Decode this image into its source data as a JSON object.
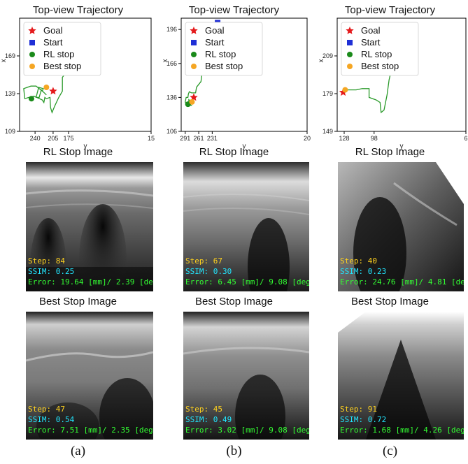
{
  "colors": {
    "goal": "#e41a1c",
    "start": "#1f2fd6",
    "rl_stop": "#1a8a1a",
    "best_stop": "#f5a623",
    "trajectory": "#2a9a2a",
    "overlay_step": "#ffd21f",
    "overlay_ssim": "#22e6ff",
    "overlay_error": "#33ff33"
  },
  "legend": {
    "goal": "Goal",
    "start": "Start",
    "rl_stop": "RL stop",
    "best_stop": "Best stop"
  },
  "labels": {
    "rl_title": "RL Stop Image",
    "best_title": "Best Stop Image"
  },
  "panels": [
    {
      "caption": "(a)",
      "rl": {
        "step": "Step: 84",
        "ssim": "SSIM: 0.25",
        "error": "Error: 19.64 [mm]/ 2.39 [deg]"
      },
      "best": {
        "step": "Step: 47",
        "ssim": "SSIM: 0.54",
        "error": "Error: 7.51 [mm]/ 2.35 [deg]"
      }
    },
    {
      "caption": "(b)",
      "rl": {
        "step": "Step: 67",
        "ssim": "SSIM: 0.30",
        "error": "Error: 6.45 [mm]/ 9.08 [deg]"
      },
      "best": {
        "step": "Step: 45",
        "ssim": "SSIM: 0.49",
        "error": "Error: 3.02 [mm]/ 9.08 [deg]"
      }
    },
    {
      "caption": "(c)",
      "rl": {
        "step": "Step: 40",
        "ssim": "SSIM: 0.23",
        "error": "Error: 24.76 [mm]/ 4.81 [deg]"
      },
      "best": {
        "step": "Step: 91",
        "ssim": "SSIM: 0.72",
        "error": "Error: 1.68 [mm]/ 4.26 [deg]"
      }
    }
  ],
  "chart_data": [
    {
      "type": "line",
      "title": "Top-view Trajectory",
      "xlabel": "y",
      "ylabel": "x",
      "xlim": [
        270,
        15
      ],
      "ylim": [
        109,
        199
      ],
      "xticks": [
        240,
        205,
        175,
        15
      ],
      "yticks": [
        109,
        139,
        169
      ],
      "trajectory": [
        [
          178,
          166
        ],
        [
          167,
          175
        ],
        [
          169,
          161
        ],
        [
          187,
          152
        ],
        [
          187,
          141
        ],
        [
          194,
          136
        ],
        [
          202,
          129
        ],
        [
          207,
          124
        ],
        [
          210,
          128
        ],
        [
          211,
          136
        ],
        [
          218,
          135
        ],
        [
          221,
          136
        ],
        [
          223,
          132
        ],
        [
          226,
          134
        ],
        [
          242,
          137
        ],
        [
          252,
          136
        ],
        [
          260,
          135
        ],
        [
          262,
          143
        ],
        [
          248,
          145
        ],
        [
          238,
          145
        ],
        [
          226,
          141
        ],
        [
          224,
          143
        ],
        [
          233,
          144
        ],
        [
          238,
          136
        ],
        [
          232,
          136
        ],
        [
          228,
          142
        ],
        [
          218,
          138
        ]
      ],
      "goal": [
        205,
        141
      ],
      "start": [
        176,
        165
      ],
      "rl_stop": [
        247,
        135
      ],
      "best_stop": [
        218,
        144
      ],
      "legend_position": "top-left",
      "grid": false
    },
    {
      "type": "line",
      "title": "Top-view Trajectory",
      "xlabel": "y",
      "ylabel": "x",
      "xlim": [
        300,
        20
      ],
      "ylim": [
        106,
        206
      ],
      "xticks": [
        291,
        261,
        231,
        20
      ],
      "yticks": [
        106,
        136,
        166,
        196
      ],
      "trajectory": [
        [
          218,
          201
        ],
        [
          221,
          193
        ],
        [
          226,
          188
        ],
        [
          226,
          176
        ],
        [
          236,
          176
        ],
        [
          246,
          176
        ],
        [
          246,
          165
        ],
        [
          253,
          159
        ],
        [
          256,
          150
        ],
        [
          266,
          145
        ],
        [
          268,
          140
        ],
        [
          277,
          140
        ],
        [
          282,
          141
        ],
        [
          284,
          139
        ],
        [
          285,
          136
        ],
        [
          289,
          136
        ],
        [
          291,
          132
        ],
        [
          287,
          128
        ],
        [
          283,
          128
        ],
        [
          283,
          134
        ],
        [
          280,
          133
        ],
        [
          279,
          129
        ],
        [
          276,
          129
        ]
      ],
      "goal": [
        272,
        136
      ],
      "start": [
        219,
        202
      ],
      "rl_stop": [
        285,
        130
      ],
      "best_stop": [
        276,
        132
      ],
      "legend_position": "top-left",
      "grid": false
    },
    {
      "type": "line",
      "title": "Top-view Trajectory",
      "xlabel": "y",
      "ylabel": "x",
      "xlim": [
        135,
        6
      ],
      "ylim": [
        149,
        239
      ],
      "xticks": [
        128,
        98,
        6
      ],
      "yticks": [
        149,
        179,
        209
      ],
      "trajectory": [
        [
          71,
          223
        ],
        [
          75,
          218
        ],
        [
          79,
          210
        ],
        [
          80,
          200
        ],
        [
          83,
          190
        ],
        [
          85,
          178
        ],
        [
          88,
          166
        ],
        [
          91,
          164
        ],
        [
          92,
          172
        ],
        [
          96,
          174
        ],
        [
          103,
          176
        ],
        [
          103,
          183
        ],
        [
          110,
          183
        ],
        [
          116,
          182
        ],
        [
          121,
          182
        ],
        [
          125,
          182
        ]
      ],
      "goal": [
        129,
        180
      ],
      "start": [
        72,
        222
      ],
      "rl_stop": [
        78,
        210
      ],
      "best_stop": [
        127,
        182
      ],
      "legend_position": "top-left",
      "grid": false
    }
  ]
}
